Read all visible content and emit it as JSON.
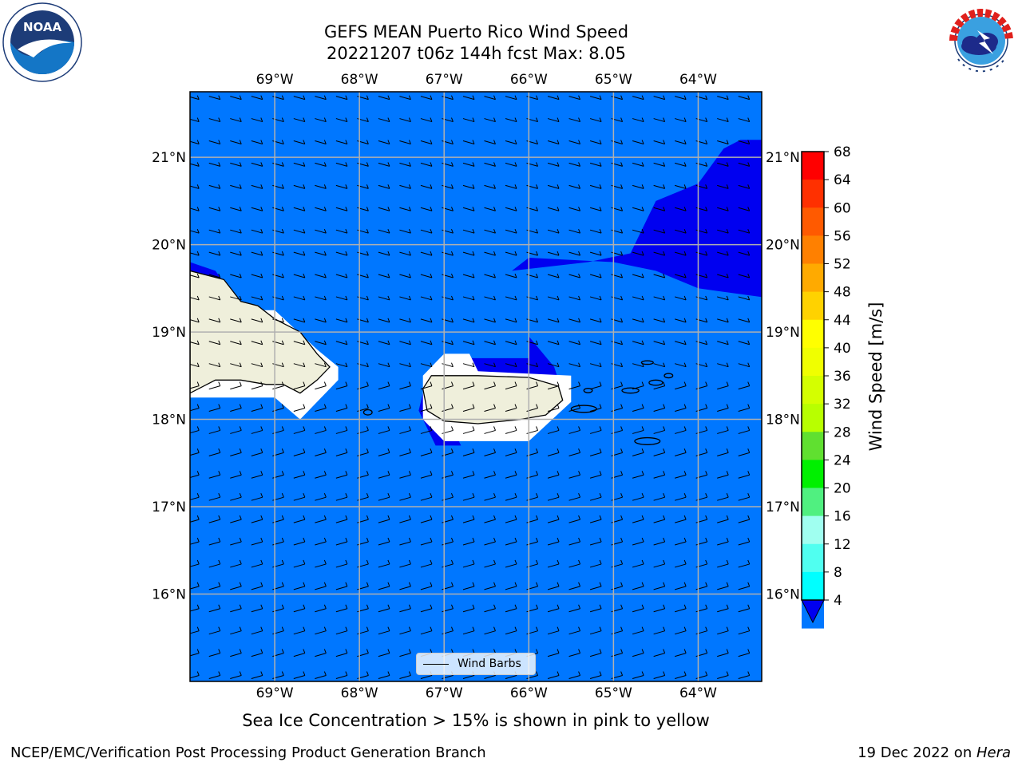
{
  "title": {
    "line1": "GEFS MEAN Puerto Rico Wind Speed",
    "line2": "20221207 t06z 144h fcst   Max: 8.05"
  },
  "logos": {
    "left": {
      "name": "noaa-logo",
      "text": "NOAA",
      "ring_text": "NATIONAL OCEANIC AND ATMOSPHERIC ADMINISTRATION · U.S. DEPARTMENT OF COMMERCE"
    },
    "right": {
      "name": "nws-logo",
      "ring_text": "NATIONAL WEATHER SERVICE"
    }
  },
  "map": {
    "lon_labels": [
      "69°W",
      "68°W",
      "67°W",
      "66°W",
      "65°W",
      "64°W"
    ],
    "lon_values": [
      -69,
      -68,
      -67,
      -66,
      -65,
      -64
    ],
    "lat_labels": [
      "21°N",
      "20°N",
      "19°N",
      "18°N",
      "17°N",
      "16°N"
    ],
    "lat_values": [
      21,
      20,
      19,
      18,
      17,
      16
    ],
    "lon_range": [
      -70,
      -63.25
    ],
    "lat_range": [
      15,
      21.75
    ],
    "colors": {
      "ocean_fill": "#0077ff",
      "low_wind_fill": "#0000f0",
      "land": "#efefdb",
      "coast": "#000000",
      "grid": "#b0b0b0"
    },
    "wind_direction": "easterly"
  },
  "legend": {
    "label": "Wind Barbs"
  },
  "colorbar": {
    "title": "Wind Speed [m/s]",
    "ticks": [
      "68",
      "64",
      "60",
      "56",
      "52",
      "48",
      "44",
      "40",
      "36",
      "32",
      "28",
      "24",
      "20",
      "16",
      "12",
      "8",
      "4"
    ],
    "colors": [
      "#ff0000",
      "#ff3000",
      "#ff5a00",
      "#ff8000",
      "#ffaa00",
      "#ffd200",
      "#ffff00",
      "#f0ff00",
      "#d4ff00",
      "#b8ff00",
      "#60e030",
      "#00f000",
      "#50f080",
      "#a0fff0",
      "#50fff0",
      "#00ffff",
      "#0077ff"
    ],
    "under_color": "#0000f0"
  },
  "note": "Sea Ice Concentration > 15% is shown in pink to yellow",
  "footer": {
    "credit": "NCEP/EMC/Verification Post Processing Product Generation Branch",
    "date_prefix": "19 Dec 2022 on ",
    "host": "Hera"
  }
}
